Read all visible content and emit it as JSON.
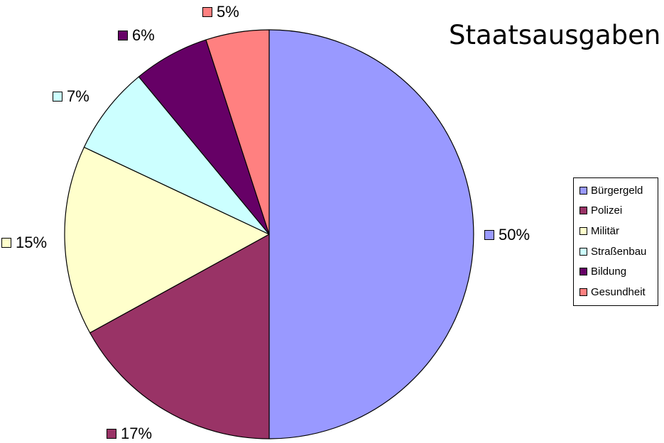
{
  "chart_data": {
    "type": "pie",
    "title": "Staatsausgaben",
    "start_angle_deg": 0,
    "direction": "clockwise",
    "legend_position": "right",
    "slices": [
      {
        "label": "Bürgergeld",
        "value": 50,
        "value_label": "50%",
        "color": "#9999FF"
      },
      {
        "label": "Polizei",
        "value": 17,
        "value_label": "17%",
        "color": "#993366"
      },
      {
        "label": "Militär",
        "value": 15,
        "value_label": "15%",
        "color": "#FFFFCC"
      },
      {
        "label": "Straßenbau",
        "value": 7,
        "value_label": "7%",
        "color": "#CCFFFF"
      },
      {
        "label": "Bildung",
        "value": 6,
        "value_label": "6%",
        "color": "#660066"
      },
      {
        "label": "Gesundheit",
        "value": 5,
        "value_label": "5%",
        "color": "#FF8080"
      }
    ]
  }
}
